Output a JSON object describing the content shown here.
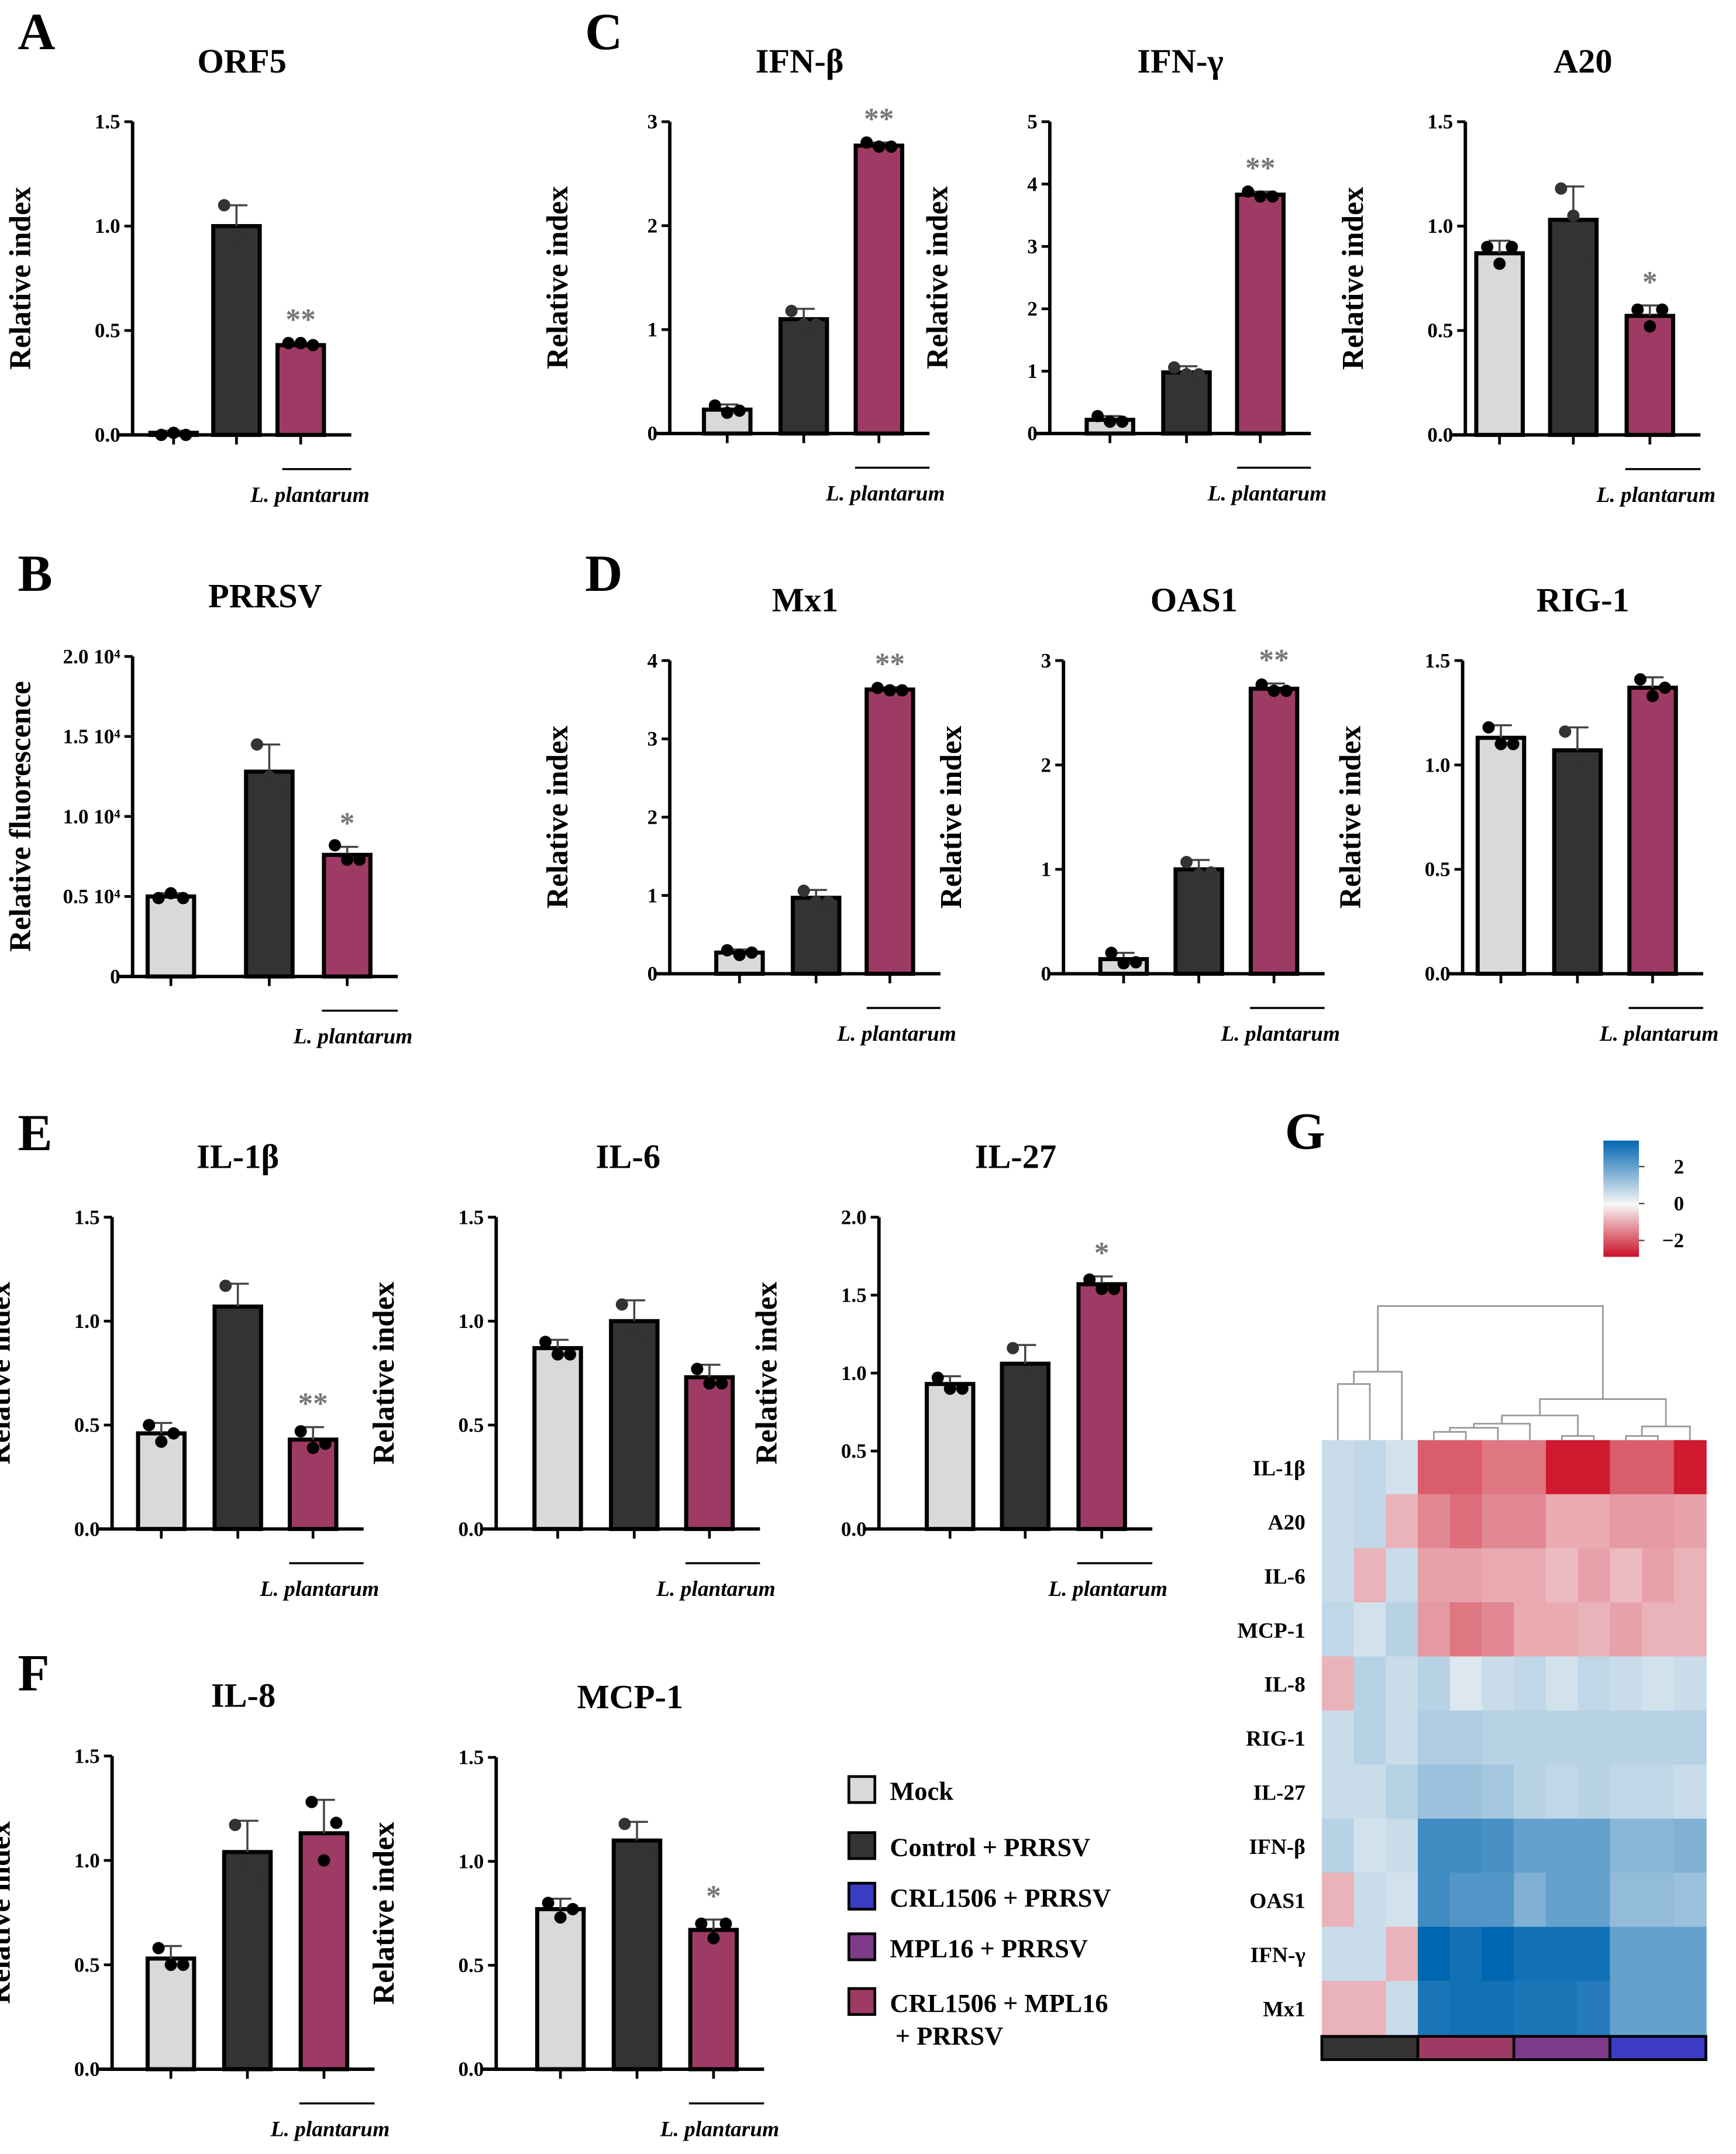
{
  "groups": [
    {
      "name": "Mock",
      "color": "#d9d9d9"
    },
    {
      "name": "Control + PRRSV",
      "color": "#333333"
    },
    {
      "name": "CRL1506 + PRRSV",
      "color": "#3b3bc4"
    },
    {
      "name": "MPL16 + PRRSV",
      "color": "#7e3b8a"
    },
    {
      "name": "CRL1506 + MPL16",
      "name2": "+ PRRSV",
      "color": "#9e3b64"
    }
  ],
  "treatment_label": "L. plantarum",
  "chart_data": [
    {
      "panel": "A",
      "type": "bar",
      "title": "ORF5",
      "ylabel": "Relative index",
      "ylim": [
        0,
        1.5
      ],
      "ticks": [
        0,
        0.5,
        1.0,
        1.5
      ],
      "tick_labels": [
        "0.0",
        "0.5",
        "1.0",
        "1.5"
      ],
      "categories": [
        "Mock",
        "Control + PRRSV",
        "CRL1506 + MPL16 + PRRSV"
      ],
      "values": [
        0.01,
        1.0,
        0.43
      ],
      "errors": [
        0.01,
        0.1,
        0.01
      ],
      "points": [
        [
          0.0,
          0.01,
          0.0
        ],
        [
          1.1,
          0.95,
          0.95
        ],
        [
          0.44,
          0.44,
          0.43
        ]
      ],
      "significance": [
        "",
        "",
        "**"
      ]
    },
    {
      "panel": "B",
      "type": "bar",
      "title": "PRRSV",
      "ylabel": "Relative fluorescence",
      "ylim": [
        0,
        20000
      ],
      "ticks": [
        0,
        5000,
        10000,
        15000,
        20000
      ],
      "tick_labels": [
        "0",
        "0.5 10⁴",
        "1.0 10⁴",
        "1.5 10⁴",
        "2.0 10⁴"
      ],
      "categories": [
        "Mock",
        "Control + PRRSV",
        "CRL1506 + MPL16 + PRRSV"
      ],
      "values": [
        5000,
        12800,
        7600
      ],
      "errors": [
        200,
        1700,
        500
      ],
      "points": [
        [
          4900,
          5200,
          4900
        ],
        [
          14500,
          12500,
          11500
        ],
        [
          8200,
          7300,
          7300
        ]
      ],
      "significance": [
        "",
        "",
        "*"
      ]
    },
    {
      "panel": "C",
      "type": "bar",
      "title": "IFN-β",
      "ylabel": "Relative index",
      "ylim": [
        0,
        3
      ],
      "ticks": [
        0,
        1,
        2,
        3
      ],
      "tick_labels": [
        "0",
        "1",
        "2",
        "3"
      ],
      "categories": [
        "Mock",
        "Control + PRRSV",
        "CRL1506 + MPL16 + PRRSV"
      ],
      "values": [
        0.23,
        1.1,
        2.77
      ],
      "errors": [
        0.05,
        0.1,
        0.03
      ],
      "points": [
        [
          0.27,
          0.2,
          0.22
        ],
        [
          1.18,
          1.05,
          1.05
        ],
        [
          2.8,
          2.76,
          2.76
        ]
      ],
      "significance": [
        "",
        "",
        "**"
      ]
    },
    {
      "panel": "",
      "type": "bar",
      "title": "IFN-γ",
      "ylabel": "Relative index",
      "ylim": [
        0,
        5
      ],
      "ticks": [
        0,
        1,
        2,
        3,
        4,
        5
      ],
      "tick_labels": [
        "0",
        "1",
        "2",
        "3",
        "4",
        "5"
      ],
      "categories": [
        "Mock",
        "Control + PRRSV",
        "CRL1506 + MPL16 + PRRSV"
      ],
      "values": [
        0.22,
        0.98,
        3.83
      ],
      "errors": [
        0.06,
        0.1,
        0.05
      ],
      "points": [
        [
          0.28,
          0.19,
          0.19
        ],
        [
          1.06,
          0.95,
          0.95
        ],
        [
          3.88,
          3.8,
          3.8
        ]
      ],
      "significance": [
        "",
        "",
        "**"
      ]
    },
    {
      "panel": "",
      "type": "bar",
      "title": "A20",
      "ylabel": "Relative index",
      "ylim": [
        0,
        1.5
      ],
      "ticks": [
        0,
        0.5,
        1.0,
        1.5
      ],
      "tick_labels": [
        "0.0",
        "0.5",
        "1.0",
        "1.5"
      ],
      "categories": [
        "Mock",
        "Control + PRRSV",
        "CRL1506 + MPL16 + PRRSV"
      ],
      "values": [
        0.87,
        1.03,
        0.57
      ],
      "errors": [
        0.06,
        0.16,
        0.05
      ],
      "points": [
        [
          0.9,
          0.82,
          0.9
        ],
        [
          1.18,
          1.05,
          0.87
        ],
        [
          0.6,
          0.52,
          0.6
        ]
      ],
      "significance": [
        "",
        "",
        "*"
      ]
    },
    {
      "panel": "D",
      "type": "bar",
      "title": "Mx1",
      "ylabel": "Relative index",
      "ylim": [
        0,
        4
      ],
      "ticks": [
        0,
        1,
        2,
        3,
        4
      ],
      "tick_labels": [
        "0",
        "1",
        "2",
        "3",
        "4"
      ],
      "categories": [
        "Mock",
        "Control + PRRSV",
        "CRL1506 + MPL16 + PRRSV"
      ],
      "values": [
        0.27,
        0.97,
        3.63
      ],
      "errors": [
        0.04,
        0.1,
        0.03
      ],
      "points": [
        [
          0.3,
          0.24,
          0.27
        ],
        [
          1.06,
          0.92,
          0.92
        ],
        [
          3.65,
          3.62,
          3.62
        ]
      ],
      "significance": [
        "",
        "",
        "**"
      ]
    },
    {
      "panel": "",
      "type": "bar",
      "title": "OAS1",
      "ylabel": "Relative index",
      "ylim": [
        0,
        3
      ],
      "ticks": [
        0,
        1,
        2,
        3
      ],
      "tick_labels": [
        "0",
        "1",
        "2",
        "3"
      ],
      "categories": [
        "Mock",
        "Control + PRRSV",
        "CRL1506 + MPL16 + PRRSV"
      ],
      "values": [
        0.14,
        1.0,
        2.73
      ],
      "errors": [
        0.06,
        0.09,
        0.05
      ],
      "points": [
        [
          0.2,
          0.1,
          0.11
        ],
        [
          1.07,
          0.95,
          0.97
        ],
        [
          2.77,
          2.71,
          2.71
        ]
      ],
      "significance": [
        "",
        "",
        "**"
      ]
    },
    {
      "panel": "",
      "type": "bar",
      "title": "RIG-1",
      "ylabel": "Relative index",
      "ylim": [
        0,
        1.5
      ],
      "ticks": [
        0,
        0.5,
        1.0,
        1.5
      ],
      "tick_labels": [
        "0.0",
        "0.5",
        "1.0",
        "1.5"
      ],
      "categories": [
        "Mock",
        "Control + PRRSV",
        "CRL1506 + MPL16 + PRRSV"
      ],
      "values": [
        1.13,
        1.07,
        1.37
      ],
      "errors": [
        0.06,
        0.11,
        0.05
      ],
      "points": [
        [
          1.18,
          1.1,
          1.1
        ],
        [
          1.16,
          1.0,
          1.0
        ],
        [
          1.41,
          1.33,
          1.37
        ]
      ],
      "significance": [
        "",
        "",
        ""
      ]
    },
    {
      "panel": "E",
      "type": "bar",
      "title": "IL-1β",
      "ylabel": "Relative index",
      "ylim": [
        0,
        1.5
      ],
      "ticks": [
        0,
        0.5,
        1.0,
        1.5
      ],
      "tick_labels": [
        "0.0",
        "0.5",
        "1.0",
        "1.5"
      ],
      "categories": [
        "Mock",
        "Control + PRRSV",
        "CRL1506 + MPL16 + PRRSV"
      ],
      "values": [
        0.46,
        1.07,
        0.43
      ],
      "errors": [
        0.05,
        0.11,
        0.06
      ],
      "points": [
        [
          0.5,
          0.42,
          0.46
        ],
        [
          1.17,
          1.03,
          1.03
        ],
        [
          0.47,
          0.39,
          0.41
        ]
      ],
      "significance": [
        "",
        "",
        "**"
      ]
    },
    {
      "panel": "",
      "type": "bar",
      "title": "IL-6",
      "ylabel": "Relative index",
      "ylim": [
        0,
        1.5
      ],
      "ticks": [
        0,
        0.5,
        1.0,
        1.5
      ],
      "tick_labels": [
        "0.0",
        "0.5",
        "1.0",
        "1.5"
      ],
      "categories": [
        "Mock",
        "Control + PRRSV",
        "CRL1506 + MPL16 + PRRSV"
      ],
      "values": [
        0.87,
        1.0,
        0.73
      ],
      "errors": [
        0.04,
        0.1,
        0.06
      ],
      "points": [
        [
          0.9,
          0.84,
          0.84
        ],
        [
          1.08,
          0.96,
          0.95
        ],
        [
          0.77,
          0.7,
          0.7
        ]
      ],
      "significance": [
        "",
        "",
        ""
      ]
    },
    {
      "panel": "",
      "type": "bar",
      "title": "IL-27",
      "ylabel": "Relative index",
      "ylim": [
        0,
        2.0
      ],
      "ticks": [
        0,
        0.5,
        1.0,
        1.5,
        2.0
      ],
      "tick_labels": [
        "0.0",
        "0.5",
        "1.0",
        "1.5",
        "2.0"
      ],
      "categories": [
        "Mock",
        "Control + PRRSV",
        "CRL1506 + MPL16 + PRRSV"
      ],
      "values": [
        0.93,
        1.06,
        1.57
      ],
      "errors": [
        0.05,
        0.12,
        0.05
      ],
      "points": [
        [
          0.97,
          0.9,
          0.9
        ],
        [
          1.16,
          1.0,
          1.0
        ],
        [
          1.6,
          1.54,
          1.54
        ]
      ],
      "significance": [
        "",
        "",
        "*"
      ]
    },
    {
      "panel": "F",
      "type": "bar",
      "title": "IL-8",
      "ylabel": "Relative index",
      "ylim": [
        0,
        1.5
      ],
      "ticks": [
        0,
        0.5,
        1.0,
        1.5
      ],
      "tick_labels": [
        "0.0",
        "0.5",
        "1.0",
        "1.5"
      ],
      "categories": [
        "Mock",
        "Control + PRRSV",
        "CRL1506 + MPL16 + PRRSV"
      ],
      "values": [
        0.53,
        1.04,
        1.13
      ],
      "errors": [
        0.06,
        0.15,
        0.16
      ],
      "points": [
        [
          0.58,
          0.5,
          0.5
        ],
        [
          1.17,
          0.98,
          0.9
        ],
        [
          1.28,
          1.0,
          1.18
        ]
      ],
      "significance": [
        "",
        "",
        ""
      ]
    },
    {
      "panel": "",
      "type": "bar",
      "title": "MCP-1",
      "ylabel": "Relative index",
      "ylim": [
        0,
        1.5
      ],
      "ticks": [
        0,
        0.5,
        1.0,
        1.5
      ],
      "tick_labels": [
        "0.0",
        "0.5",
        "1.0",
        "1.5"
      ],
      "categories": [
        "Mock",
        "Control + PRRSV",
        "CRL1506 + MPL16 + PRRSV"
      ],
      "values": [
        0.77,
        1.1,
        0.67
      ],
      "errors": [
        0.05,
        0.09,
        0.05
      ],
      "points": [
        [
          0.8,
          0.73,
          0.77
        ],
        [
          1.18,
          1.05,
          1.05
        ],
        [
          0.7,
          0.63,
          0.7
        ]
      ],
      "significance": [
        "",
        "",
        "*"
      ]
    },
    {
      "panel": "G",
      "type": "heatmap",
      "colorbar_ticks": [
        2,
        0,
        -2
      ],
      "colorbar_labels": [
        "2",
        "0",
        "−2"
      ],
      "color_low": "#cc1027",
      "color_mid": "#f7f7f7",
      "color_high": "#0066b0",
      "column_groups": [
        "Control + PRRSV",
        "CRL1506 + MPL16 + PRRSV",
        "MPL16 + PRRSV",
        "CRL1506 + PRRSV"
      ],
      "rows": [
        "IL-1β",
        "A20",
        "IL-6",
        "MCP-1",
        "IL-8",
        "RIG-1",
        "IL-27",
        "IFN-β",
        "OAS1",
        "IFN-γ",
        "Mx1"
      ],
      "values": [
        [
          0.5,
          0.6,
          0.4,
          -1.8,
          -1.8,
          -1.5,
          -1.5,
          -2.6,
          -2.6,
          -1.8,
          -1.8,
          -2.6
        ],
        [
          0.5,
          0.6,
          -0.8,
          -1.3,
          -1.6,
          -1.3,
          -1.3,
          -0.9,
          -0.9,
          -1.1,
          -1.1,
          -1.0
        ],
        [
          0.5,
          -0.8,
          0.5,
          -1.0,
          -1.0,
          -0.9,
          -0.9,
          -0.7,
          -1.0,
          -0.7,
          -1.0,
          -0.8
        ],
        [
          0.6,
          0.4,
          0.7,
          -1.1,
          -1.5,
          -1.3,
          -0.9,
          -0.9,
          -0.8,
          -1.0,
          -0.8,
          -0.8
        ],
        [
          -0.8,
          0.7,
          0.5,
          0.7,
          0.3,
          0.5,
          0.6,
          0.4,
          0.6,
          0.5,
          0.4,
          0.5
        ],
        [
          0.5,
          0.7,
          0.5,
          0.8,
          0.8,
          0.7,
          0.7,
          0.7,
          0.7,
          0.7,
          0.7,
          0.7
        ],
        [
          0.5,
          0.5,
          0.7,
          1.0,
          1.0,
          0.9,
          0.7,
          0.6,
          0.7,
          0.6,
          0.6,
          0.5
        ],
        [
          0.7,
          0.4,
          0.5,
          2.0,
          2.0,
          1.9,
          1.6,
          1.6,
          1.6,
          1.2,
          1.2,
          1.3
        ],
        [
          -0.8,
          0.5,
          0.4,
          2.0,
          1.8,
          1.8,
          1.3,
          1.6,
          1.6,
          1.1,
          1.1,
          1.0
        ],
        [
          0.5,
          0.5,
          -0.8,
          2.7,
          2.5,
          2.7,
          2.5,
          2.5,
          2.5,
          1.6,
          1.6,
          1.6
        ],
        [
          -0.8,
          -0.8,
          0.5,
          2.4,
          2.5,
          2.5,
          2.4,
          2.4,
          2.3,
          1.6,
          1.6,
          1.6
        ]
      ]
    }
  ]
}
